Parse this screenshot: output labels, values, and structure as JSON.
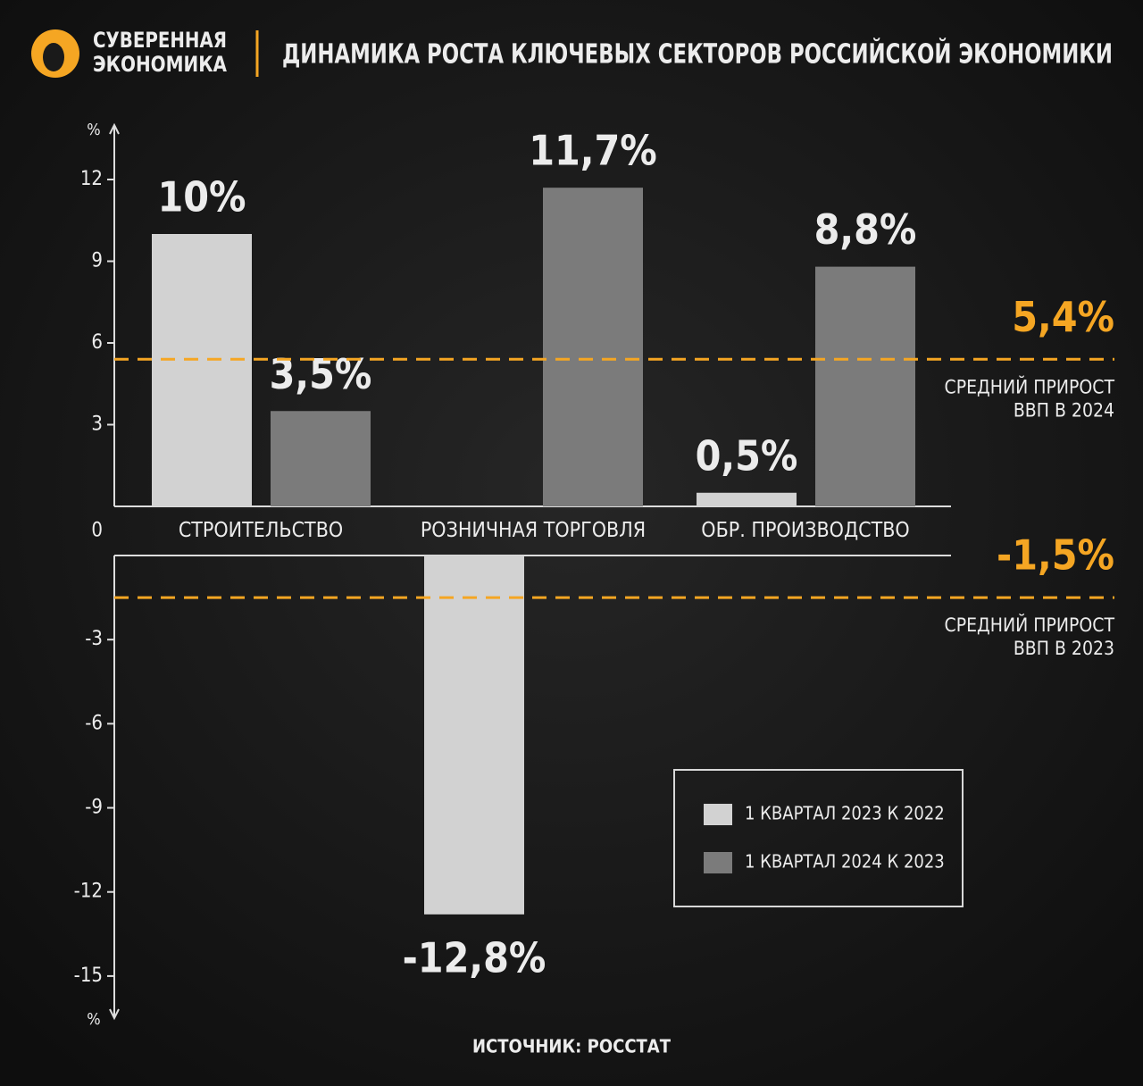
{
  "header": {
    "brand": [
      "СУВЕРЕННАЯ",
      "ЭКОНОМИКА"
    ],
    "title": "ДИНАМИКА РОСТА КЛЮЧЕВЫХ СЕКТОРОВ РОССИЙСКОЙ ЭКОНОМИКИ"
  },
  "chart_data": {
    "type": "bar",
    "y_unit": "%",
    "categories": [
      "СТРОИТЕЛЬСТВО",
      "РОЗНИЧНАЯ ТОРГОВЛЯ",
      "ОБР. ПРОИЗВОДСТВО"
    ],
    "series": [
      {
        "name": "1 КВАРТАЛ 2023 К 2022",
        "color": "#d2d2d2",
        "values": [
          10,
          -12.8,
          0.5
        ],
        "value_labels": [
          "10%",
          "-12,8%",
          "0,5%"
        ]
      },
      {
        "name": "1 КВАРТАЛ 2024 К 2023",
        "color": "#7b7b7b",
        "values": [
          3.5,
          11.7,
          8.8
        ],
        "value_labels": [
          "3,5%",
          "11,7%",
          "8,8%"
        ]
      }
    ],
    "ylim": [
      -16.5,
      14
    ],
    "yticks": [
      -15,
      -12,
      -9,
      -6,
      -3,
      0,
      3,
      6,
      9,
      12
    ],
    "reference_lines": [
      {
        "value": 5.4,
        "label": "5,4%",
        "text": [
          "СРЕДНИЙ ПРИРОСТ",
          "ВВП В 2024"
        ],
        "color": "#f5a623"
      },
      {
        "value": -1.5,
        "label": "-1,5%",
        "text": [
          "СРЕДНИЙ ПРИРОСТ",
          "ВВП В 2023"
        ],
        "color": "#f5a623"
      }
    ],
    "source": "ИСТОЧНИК: РОССТАТ"
  }
}
